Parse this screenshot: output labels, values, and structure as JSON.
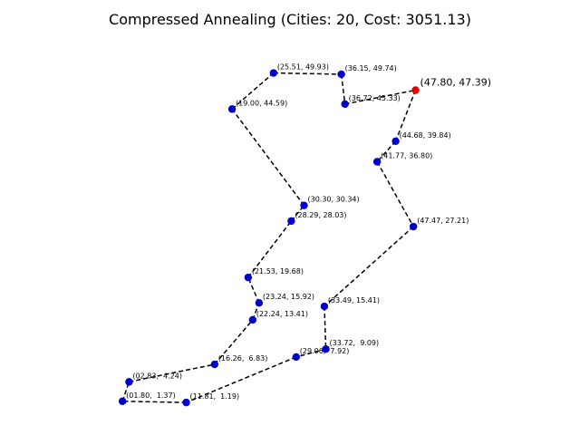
{
  "chart_data": {
    "type": "scatter",
    "title": "Compressed Annealing (Cities: 20, Cost: 3051.13)",
    "axes_visible": false,
    "grid": false,
    "line_style": "dashed",
    "colors": {
      "route": "#000000",
      "city": "#0000cc",
      "start_city": "#dd0000"
    },
    "start_index": 0,
    "tour": [
      {
        "x": 47.8,
        "y": 47.39,
        "label": "(47.80, 47.39)"
      },
      {
        "x": 44.68,
        "y": 39.84,
        "label": "(44.68, 39.84)"
      },
      {
        "x": 41.77,
        "y": 36.8,
        "label": "(41.77, 36.80)"
      },
      {
        "x": 47.47,
        "y": 27.21,
        "label": "(47.47, 27.21)"
      },
      {
        "x": 33.49,
        "y": 15.41,
        "label": "(33.49, 15.41)"
      },
      {
        "x": 33.72,
        "y": 9.09,
        "label": "(33.72,  9.09)"
      },
      {
        "x": 29.06,
        "y": 7.92,
        "label": "(29.06,  7.92)"
      },
      {
        "x": 11.81,
        "y": 1.19,
        "label": "(11.81,  1.19)"
      },
      {
        "x": 1.8,
        "y": 1.37,
        "label": "(01.80,  1.37)"
      },
      {
        "x": 2.83,
        "y": 4.24,
        "label": "(02.83,  4.24)"
      },
      {
        "x": 16.26,
        "y": 6.83,
        "label": "(16.26,  6.83)"
      },
      {
        "x": 22.24,
        "y": 13.41,
        "label": "(22.24, 13.41)"
      },
      {
        "x": 23.24,
        "y": 15.92,
        "label": "(23.24, 15.92)"
      },
      {
        "x": 21.53,
        "y": 19.68,
        "label": "(21.53, 19.68)"
      },
      {
        "x": 28.29,
        "y": 28.03,
        "label": "(28.29, 28.03)"
      },
      {
        "x": 30.3,
        "y": 30.34,
        "label": "(30.30, 30.34)"
      },
      {
        "x": 19.0,
        "y": 44.59,
        "label": "(19.00, 44.59)"
      },
      {
        "x": 25.51,
        "y": 49.93,
        "label": "(25.51, 49.93)"
      },
      {
        "x": 36.15,
        "y": 49.74,
        "label": "(36.15, 49.74)"
      },
      {
        "x": 36.72,
        "y": 45.33,
        "label": "(36.72, 45.33)"
      }
    ]
  }
}
